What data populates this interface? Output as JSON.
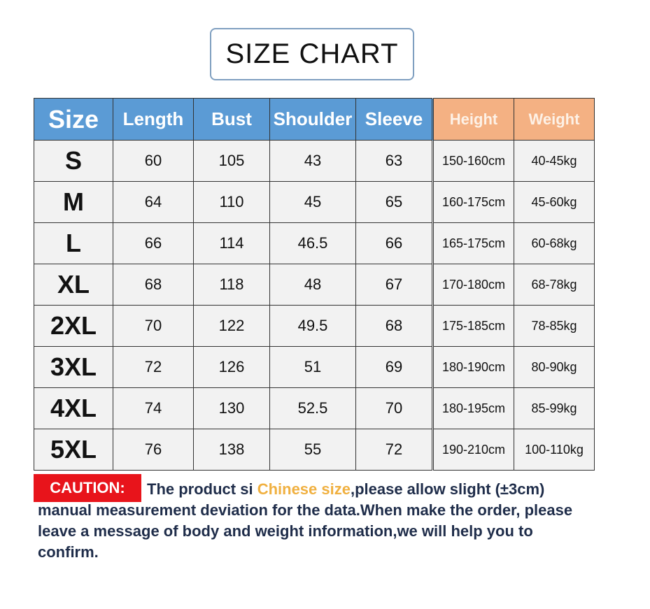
{
  "title": "SIZE CHART",
  "colors": {
    "header_blue": "#5b9bd5",
    "header_orange": "#f4b183",
    "caution_red": "#e8141b",
    "highlight": "#f0b040"
  },
  "table": {
    "headers": [
      "Size",
      "Length",
      "Bust",
      "Shoulder",
      "Sleeve",
      "Height",
      "Weight"
    ],
    "rows": [
      [
        "S",
        "60",
        "105",
        "43",
        "63",
        "150-160cm",
        "40-45kg"
      ],
      [
        "M",
        "64",
        "110",
        "45",
        "65",
        "160-175cm",
        "45-60kg"
      ],
      [
        "L",
        "66",
        "114",
        "46.5",
        "66",
        "165-175cm",
        "60-68kg"
      ],
      [
        "XL",
        "68",
        "118",
        "48",
        "67",
        "170-180cm",
        "68-78kg"
      ],
      [
        "2XL",
        "70",
        "122",
        "49.5",
        "68",
        "175-185cm",
        "78-85kg"
      ],
      [
        "3XL",
        "72",
        "126",
        "51",
        "69",
        "180-190cm",
        "80-90kg"
      ],
      [
        "4XL",
        "74",
        "130",
        "52.5",
        "70",
        "180-195cm",
        "85-99kg"
      ],
      [
        "5XL",
        "76",
        "138",
        "55",
        "72",
        "190-210cm",
        "100-110kg"
      ]
    ]
  },
  "caution": {
    "label": "CAUTION:",
    "text_before": "The product si ",
    "highlight": "Chinese size",
    "text_after": ",please allow slight (±3cm) manual measurement deviation for the data.When make the order, please leave a message of body and weight information,we will help you to confirm."
  }
}
